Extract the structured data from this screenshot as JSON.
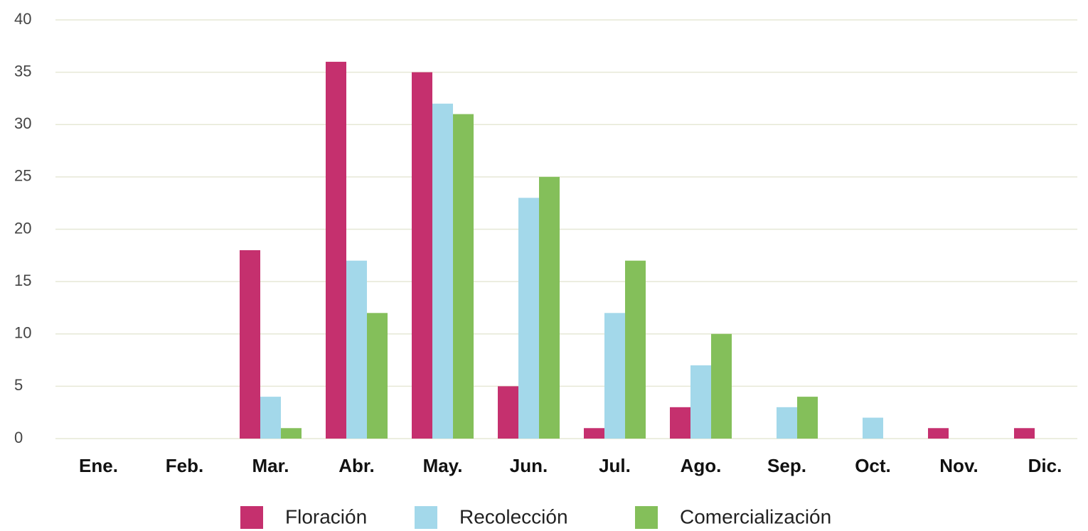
{
  "chart_data": {
    "type": "bar",
    "categories": [
      "Ene.",
      "Feb.",
      "Mar.",
      "Abr.",
      "May.",
      "Jun.",
      "Jul.",
      "Ago.",
      "Sep.",
      "Oct.",
      "Nov.",
      "Dic."
    ],
    "series": [
      {
        "name": "Floración",
        "color": "#c5306e",
        "values": [
          0,
          0,
          18,
          36,
          35,
          5,
          1,
          3,
          0,
          0,
          1,
          1
        ]
      },
      {
        "name": "Recolección",
        "color": "#a3d8ea",
        "values": [
          0,
          0,
          4,
          17,
          32,
          23,
          12,
          7,
          3,
          2,
          0,
          0
        ]
      },
      {
        "name": "Comercialización",
        "color": "#84bf5a",
        "values": [
          0,
          0,
          1,
          12,
          31,
          25,
          17,
          10,
          4,
          0,
          0,
          0
        ]
      }
    ],
    "ylim": [
      0,
      40
    ],
    "yticks": [
      0,
      5,
      10,
      15,
      20,
      25,
      30,
      35,
      40
    ],
    "grid": true,
    "legend": "bottom"
  }
}
